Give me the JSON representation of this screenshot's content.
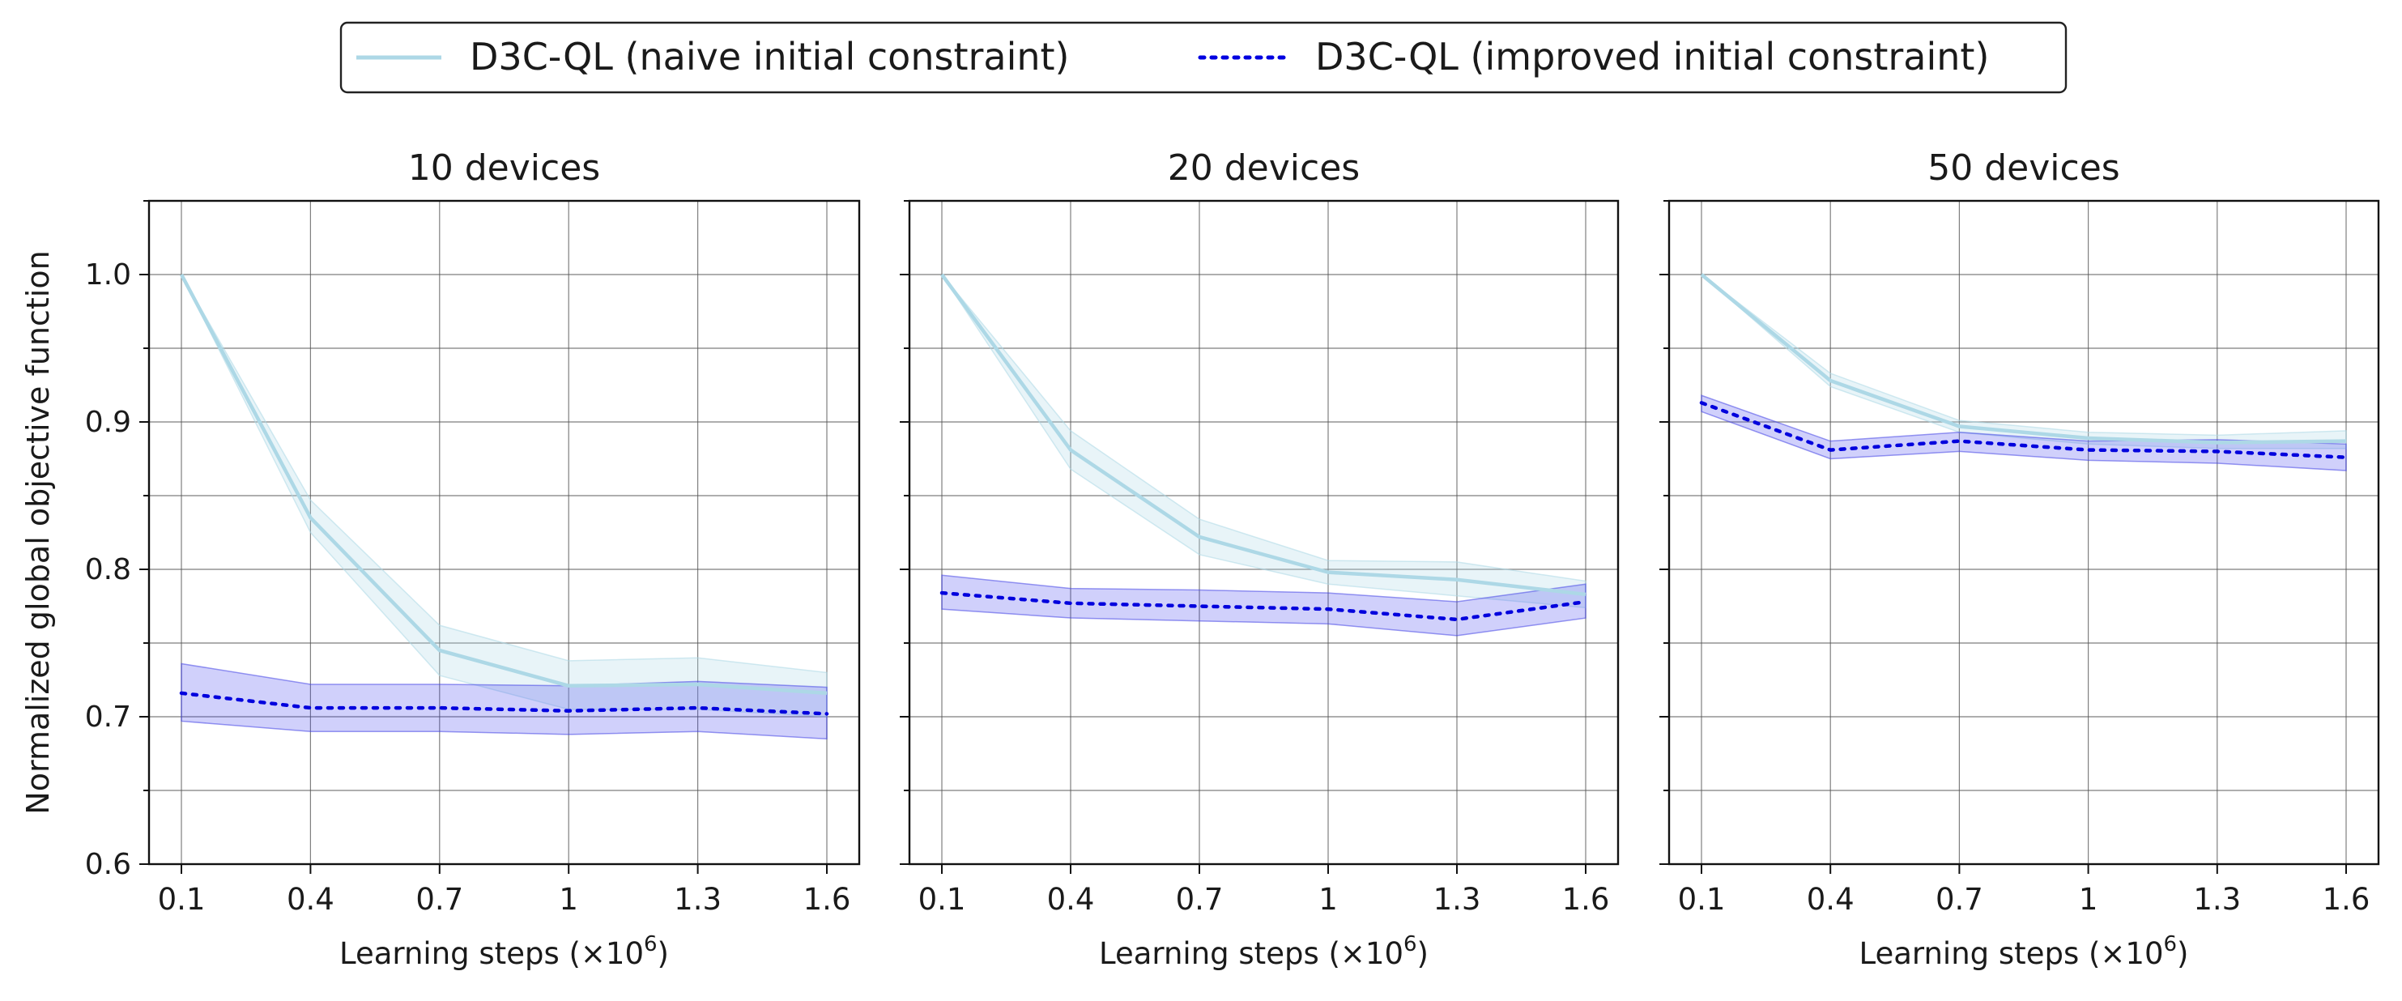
{
  "legend": {
    "items": [
      {
        "label": "D3C-QL (naive initial constraint)",
        "color": "#add8e6",
        "style": "solid"
      },
      {
        "label": "D3C-QL (improved initial constraint)",
        "color": "#0000e0",
        "style": "dotted"
      }
    ]
  },
  "chart_data": [
    {
      "type": "line",
      "title": "10 devices",
      "xlabel": "Learning steps (×10",
      "xlabel_sup": "6",
      "xlabel_end": ")",
      "ylabel": "Normalized global objective function",
      "x": [
        0.1,
        0.4,
        0.7,
        1.0,
        1.3,
        1.6
      ],
      "xtick_labels": [
        "0.1",
        "0.4",
        "0.7",
        "1",
        "1.3",
        "1.6"
      ],
      "ylim": [
        0.6,
        1.05
      ],
      "yticks": [
        0.6,
        0.7,
        0.8,
        0.9,
        1.0
      ],
      "ytick_labels": [
        "0.6",
        "0.7",
        "0.8",
        "0.9",
        "1.0"
      ],
      "grid": true,
      "series": [
        {
          "name": "D3C-QL (naive initial constraint)",
          "values": [
            1.0,
            0.835,
            0.745,
            0.721,
            0.722,
            0.716
          ],
          "lower": [
            1.0,
            0.825,
            0.728,
            0.705,
            0.705,
            0.7
          ],
          "upper": [
            1.0,
            0.847,
            0.762,
            0.738,
            0.74,
            0.73
          ]
        },
        {
          "name": "D3C-QL (improved initial constraint)",
          "values": [
            0.716,
            0.706,
            0.706,
            0.704,
            0.706,
            0.702
          ],
          "lower": [
            0.697,
            0.69,
            0.69,
            0.688,
            0.69,
            0.685
          ],
          "upper": [
            0.736,
            0.722,
            0.722,
            0.721,
            0.724,
            0.72
          ]
        }
      ]
    },
    {
      "type": "line",
      "title": "20 devices",
      "xlabel": "Learning steps (×10",
      "xlabel_sup": "6",
      "xlabel_end": ")",
      "x": [
        0.1,
        0.4,
        0.7,
        1.0,
        1.3,
        1.6
      ],
      "xtick_labels": [
        "0.1",
        "0.4",
        "0.7",
        "1",
        "1.3",
        "1.6"
      ],
      "ylim": [
        0.6,
        1.05
      ],
      "yticks": [
        0.6,
        0.7,
        0.8,
        0.9,
        1.0
      ],
      "grid": true,
      "series": [
        {
          "name": "D3C-QL (naive initial constraint)",
          "values": [
            1.0,
            0.881,
            0.822,
            0.798,
            0.793,
            0.783
          ],
          "lower": [
            1.0,
            0.868,
            0.81,
            0.79,
            0.782,
            0.774
          ],
          "upper": [
            1.0,
            0.894,
            0.834,
            0.806,
            0.805,
            0.792
          ]
        },
        {
          "name": "D3C-QL (improved initial constraint)",
          "values": [
            0.784,
            0.777,
            0.775,
            0.773,
            0.766,
            0.778
          ],
          "lower": [
            0.773,
            0.767,
            0.765,
            0.763,
            0.755,
            0.767
          ],
          "upper": [
            0.796,
            0.787,
            0.786,
            0.784,
            0.778,
            0.79
          ]
        }
      ]
    },
    {
      "type": "line",
      "title": "50 devices",
      "xlabel": "Learning steps (×10",
      "xlabel_sup": "6",
      "xlabel_end": ")",
      "x": [
        0.1,
        0.4,
        0.7,
        1.0,
        1.3,
        1.6
      ],
      "xtick_labels": [
        "0.1",
        "0.4",
        "0.7",
        "1",
        "1.3",
        "1.6"
      ],
      "ylim": [
        0.6,
        1.05
      ],
      "yticks": [
        0.6,
        0.7,
        0.8,
        0.9,
        1.0
      ],
      "grid": true,
      "series": [
        {
          "name": "D3C-QL (naive initial constraint)",
          "values": [
            1.0,
            0.928,
            0.897,
            0.889,
            0.886,
            0.887
          ],
          "lower": [
            1.0,
            0.924,
            0.893,
            0.885,
            0.882,
            0.882
          ],
          "upper": [
            1.0,
            0.933,
            0.901,
            0.893,
            0.891,
            0.894
          ]
        },
        {
          "name": "D3C-QL (improved initial constraint)",
          "values": [
            0.913,
            0.881,
            0.887,
            0.881,
            0.88,
            0.876
          ],
          "lower": [
            0.907,
            0.875,
            0.88,
            0.874,
            0.872,
            0.867
          ],
          "upper": [
            0.918,
            0.887,
            0.893,
            0.887,
            0.888,
            0.885
          ]
        }
      ]
    }
  ]
}
